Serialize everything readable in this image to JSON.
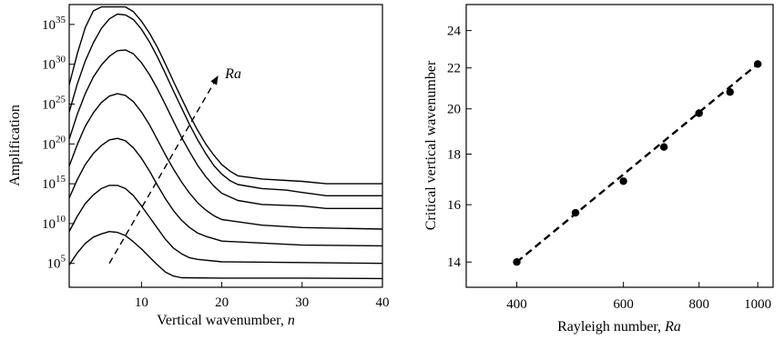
{
  "chart_data": [
    {
      "type": "line",
      "xlabel": "Vertical wavenumber, ",
      "xlabel_var": "n",
      "ylabel": "Amplification",
      "xlim": [
        1,
        40
      ],
      "ylim_log10": [
        2,
        37.5
      ],
      "yscale": "log",
      "grid": false,
      "x_ticks": [
        {
          "value": 10,
          "label": "10"
        },
        {
          "value": 20,
          "label": "20"
        },
        {
          "value": 30,
          "label": "30"
        },
        {
          "value": 40,
          "label": "40"
        }
      ],
      "y_ticks": [
        {
          "log10": 5,
          "base": "10",
          "exp": "5"
        },
        {
          "log10": 10,
          "base": "10",
          "exp": "10"
        },
        {
          "log10": 15,
          "base": "10",
          "exp": "15"
        },
        {
          "log10": 20,
          "base": "10",
          "exp": "20"
        },
        {
          "log10": 25,
          "base": "10",
          "exp": "25"
        },
        {
          "log10": 30,
          "base": "10",
          "exp": "30"
        },
        {
          "log10": 35,
          "base": "10",
          "exp": "35"
        }
      ],
      "annotation": {
        "text": "Ra",
        "arrow_from": [
          6,
          5
        ],
        "arrow_to": [
          19.5,
          28.5
        ]
      },
      "series": [
        {
          "values": [
            [
              1,
              4.8
            ],
            [
              2,
              6.3
            ],
            [
              3,
              7.5
            ],
            [
              4,
              8.3
            ],
            [
              5,
              8.7
            ],
            [
              6,
              9.0
            ],
            [
              7,
              8.9
            ],
            [
              8,
              8.5
            ],
            [
              9,
              7.7
            ],
            [
              10,
              6.8
            ],
            [
              11,
              5.8
            ],
            [
              12,
              4.8
            ],
            [
              13,
              3.9
            ],
            [
              14,
              3.4
            ],
            [
              15,
              3.2
            ],
            [
              20,
              3.15
            ],
            [
              30,
              3.15
            ],
            [
              40,
              3.1
            ]
          ]
        },
        {
          "values": [
            [
              1,
              9.0
            ],
            [
              2,
              10.9
            ],
            [
              3,
              12.5
            ],
            [
              4,
              13.6
            ],
            [
              5,
              14.4
            ],
            [
              6,
              14.8
            ],
            [
              7,
              14.8
            ],
            [
              8,
              14.4
            ],
            [
              9,
              13.5
            ],
            [
              10,
              12.2
            ],
            [
              11,
              10.8
            ],
            [
              12,
              9.4
            ],
            [
              13,
              8.0
            ],
            [
              14,
              6.9
            ],
            [
              15,
              6.2
            ],
            [
              16,
              5.7
            ],
            [
              17,
              5.5
            ],
            [
              20,
              5.2
            ],
            [
              30,
              5.1
            ],
            [
              40,
              5.0
            ]
          ]
        },
        {
          "values": [
            [
              1,
              13.2
            ],
            [
              2,
              15.5
            ],
            [
              3,
              17.4
            ],
            [
              4,
              18.8
            ],
            [
              5,
              19.8
            ],
            [
              6,
              20.5
            ],
            [
              7,
              20.7
            ],
            [
              8,
              20.4
            ],
            [
              9,
              19.5
            ],
            [
              10,
              18.2
            ],
            [
              11,
              16.6
            ],
            [
              12,
              14.8
            ],
            [
              13,
              13.1
            ],
            [
              14,
              11.6
            ],
            [
              15,
              10.4
            ],
            [
              16,
              9.5
            ],
            [
              17,
              8.8
            ],
            [
              18,
              8.4
            ],
            [
              20,
              7.8
            ],
            [
              30,
              7.3
            ],
            [
              40,
              7.2
            ]
          ]
        },
        {
          "values": [
            [
              1,
              17.2
            ],
            [
              2,
              19.9
            ],
            [
              3,
              22.2
            ],
            [
              4,
              23.9
            ],
            [
              5,
              25.2
            ],
            [
              6,
              26.0
            ],
            [
              7,
              26.3
            ],
            [
              8,
              26.1
            ],
            [
              9,
              25.3
            ],
            [
              10,
              24.0
            ],
            [
              11,
              22.4
            ],
            [
              12,
              20.5
            ],
            [
              13,
              18.6
            ],
            [
              14,
              16.8
            ],
            [
              15,
              15.2
            ],
            [
              16,
              13.8
            ],
            [
              17,
              12.6
            ],
            [
              18,
              11.7
            ],
            [
              19,
              11.0
            ],
            [
              20,
              10.5
            ],
            [
              25,
              9.8
            ],
            [
              30,
              9.5
            ],
            [
              40,
              9.3
            ]
          ]
        },
        {
          "values": [
            [
              1,
              20.6
            ],
            [
              2,
              23.7
            ],
            [
              3,
              26.3
            ],
            [
              4,
              28.4
            ],
            [
              5,
              29.9
            ],
            [
              6,
              31.0
            ],
            [
              7,
              31.7
            ],
            [
              8,
              31.8
            ],
            [
              9,
              31.3
            ],
            [
              10,
              30.2
            ],
            [
              11,
              28.7
            ],
            [
              12,
              26.9
            ],
            [
              13,
              24.9
            ],
            [
              14,
              22.8
            ],
            [
              15,
              20.8
            ],
            [
              16,
              19.0
            ],
            [
              17,
              17.3
            ],
            [
              18,
              15.9
            ],
            [
              19,
              14.7
            ],
            [
              20,
              13.8
            ],
            [
              22,
              12.9
            ],
            [
              25,
              12.4
            ],
            [
              30,
              12.2
            ],
            [
              33,
              11.9
            ],
            [
              40,
              11.9
            ]
          ]
        },
        {
          "values": [
            [
              1,
              24.0
            ],
            [
              2,
              27.5
            ],
            [
              3,
              30.4
            ],
            [
              4,
              32.7
            ],
            [
              5,
              34.5
            ],
            [
              6,
              35.7
            ],
            [
              7,
              36.3
            ],
            [
              8,
              36.2
            ],
            [
              9,
              35.6
            ],
            [
              10,
              34.4
            ],
            [
              11,
              32.8
            ],
            [
              12,
              30.9
            ],
            [
              13,
              28.8
            ],
            [
              14,
              26.6
            ],
            [
              15,
              24.5
            ],
            [
              16,
              22.4
            ],
            [
              17,
              20.5
            ],
            [
              18,
              18.8
            ],
            [
              19,
              17.3
            ],
            [
              20,
              16.2
            ],
            [
              21,
              15.4
            ],
            [
              22,
              14.9
            ],
            [
              25,
              14.4
            ],
            [
              28,
              14.2
            ],
            [
              30,
              13.9
            ],
            [
              33,
              13.5
            ],
            [
              40,
              13.5
            ]
          ]
        },
        {
          "values": [
            [
              1,
              27.4
            ],
            [
              2,
              31.3
            ],
            [
              3,
              34.6
            ],
            [
              4,
              36.7
            ],
            [
              5,
              37.2
            ],
            [
              8,
              37.2
            ],
            [
              9,
              36.6
            ],
            [
              10,
              35.4
            ],
            [
              11,
              33.9
            ],
            [
              12,
              32.1
            ],
            [
              13,
              30.0
            ],
            [
              14,
              27.8
            ],
            [
              15,
              25.7
            ],
            [
              16,
              23.6
            ],
            [
              17,
              21.7
            ],
            [
              18,
              20.0
            ],
            [
              19,
              18.6
            ],
            [
              20,
              17.4
            ],
            [
              21,
              16.6
            ],
            [
              22,
              16.0
            ],
            [
              25,
              15.6
            ],
            [
              30,
              15.3
            ],
            [
              33,
              15.0
            ],
            [
              40,
              15.0
            ]
          ]
        }
      ]
    },
    {
      "type": "scatter",
      "xlabel": "Rayleigh number, ",
      "xlabel_var": "Ra",
      "ylabel": "Critical vertical wavenumber",
      "xscale": "log",
      "yscale": "log",
      "xlim": [
        330,
        1060
      ],
      "ylim": [
        13.2,
        25.5
      ],
      "grid": false,
      "x_ticks": [
        400,
        600,
        800,
        1000
      ],
      "y_ticks": [
        14,
        16,
        18,
        20,
        22,
        24
      ],
      "points": [
        [
          400,
          14.0
        ],
        [
          500,
          15.7
        ],
        [
          600,
          16.9
        ],
        [
          700,
          18.3
        ],
        [
          800,
          19.8
        ],
        [
          900,
          20.8
        ],
        [
          1000,
          22.2
        ]
      ],
      "fit_line": [
        [
          400,
          14.0
        ],
        [
          1000,
          22.2
        ]
      ]
    }
  ]
}
